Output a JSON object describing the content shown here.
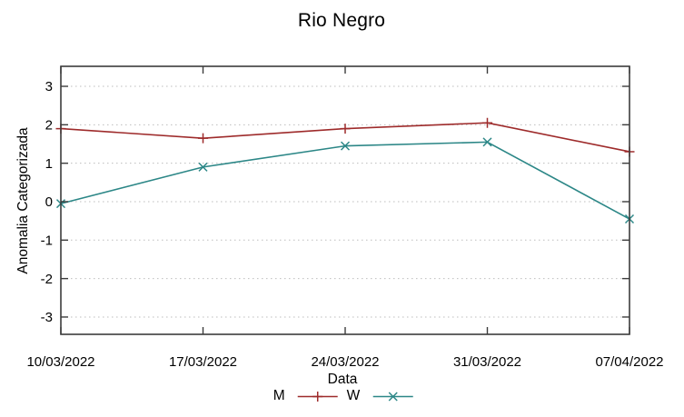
{
  "chart_data": {
    "type": "line",
    "title": "Rio Negro",
    "xlabel": "Data",
    "ylabel": "Anomalia Categorizada",
    "categories": [
      "10/03/2022",
      "17/03/2022",
      "24/03/2022",
      "31/03/2022",
      "07/04/2022"
    ],
    "series": [
      {
        "name": "M",
        "marker": "plus",
        "color": "#9e2b2b",
        "values": [
          1.9,
          1.65,
          1.9,
          2.05,
          1.3
        ]
      },
      {
        "name": "W",
        "marker": "cross",
        "color": "#2c8787",
        "values": [
          -0.05,
          0.9,
          1.45,
          1.55,
          -0.45
        ]
      }
    ],
    "yticks": [
      3,
      2,
      1,
      0,
      -1,
      -2,
      -3
    ],
    "ylim": [
      -3.45,
      3.52
    ],
    "grid": "horizontal dotted",
    "legend_position": "bottom-center",
    "frame_color": "#3c3c3c",
    "grid_color": "#bdbdbd",
    "text_color": "#000000",
    "background": "#ffffff"
  }
}
